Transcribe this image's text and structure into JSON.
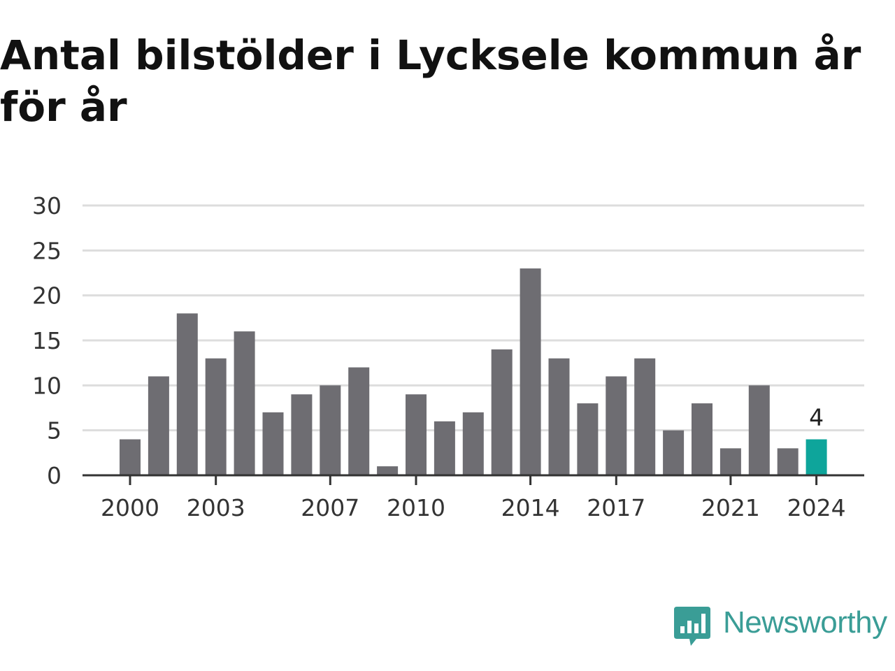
{
  "chart_data": {
    "type": "bar",
    "title": "Antal bilstölder i Lycksele kommun år för år",
    "xlabel": "",
    "ylabel": "",
    "categories": [
      2000,
      2001,
      2002,
      2003,
      2004,
      2005,
      2006,
      2007,
      2008,
      2009,
      2010,
      2011,
      2012,
      2013,
      2014,
      2015,
      2016,
      2017,
      2018,
      2019,
      2020,
      2021,
      2022,
      2023,
      2024
    ],
    "values": [
      4,
      11,
      18,
      13,
      16,
      7,
      9,
      10,
      12,
      1,
      9,
      6,
      7,
      14,
      23,
      13,
      8,
      11,
      13,
      5,
      8,
      3,
      10,
      3,
      4
    ],
    "ylim": [
      0,
      30
    ],
    "yticks": [
      0,
      5,
      10,
      15,
      20,
      25,
      30
    ],
    "xtick_labels": [
      2000,
      2003,
      2007,
      2010,
      2014,
      2017,
      2021,
      2024
    ],
    "highlight": {
      "category": 2024,
      "label": "4"
    },
    "grid": true,
    "colors": {
      "bar": "#6e6d72",
      "highlight": "#0ea59b",
      "grid": "#dddddd",
      "axis": "#333333"
    }
  },
  "branding": {
    "name": "Newsworthy",
    "icon": "newsworthy-logo-icon",
    "color": "#3a9d96"
  }
}
